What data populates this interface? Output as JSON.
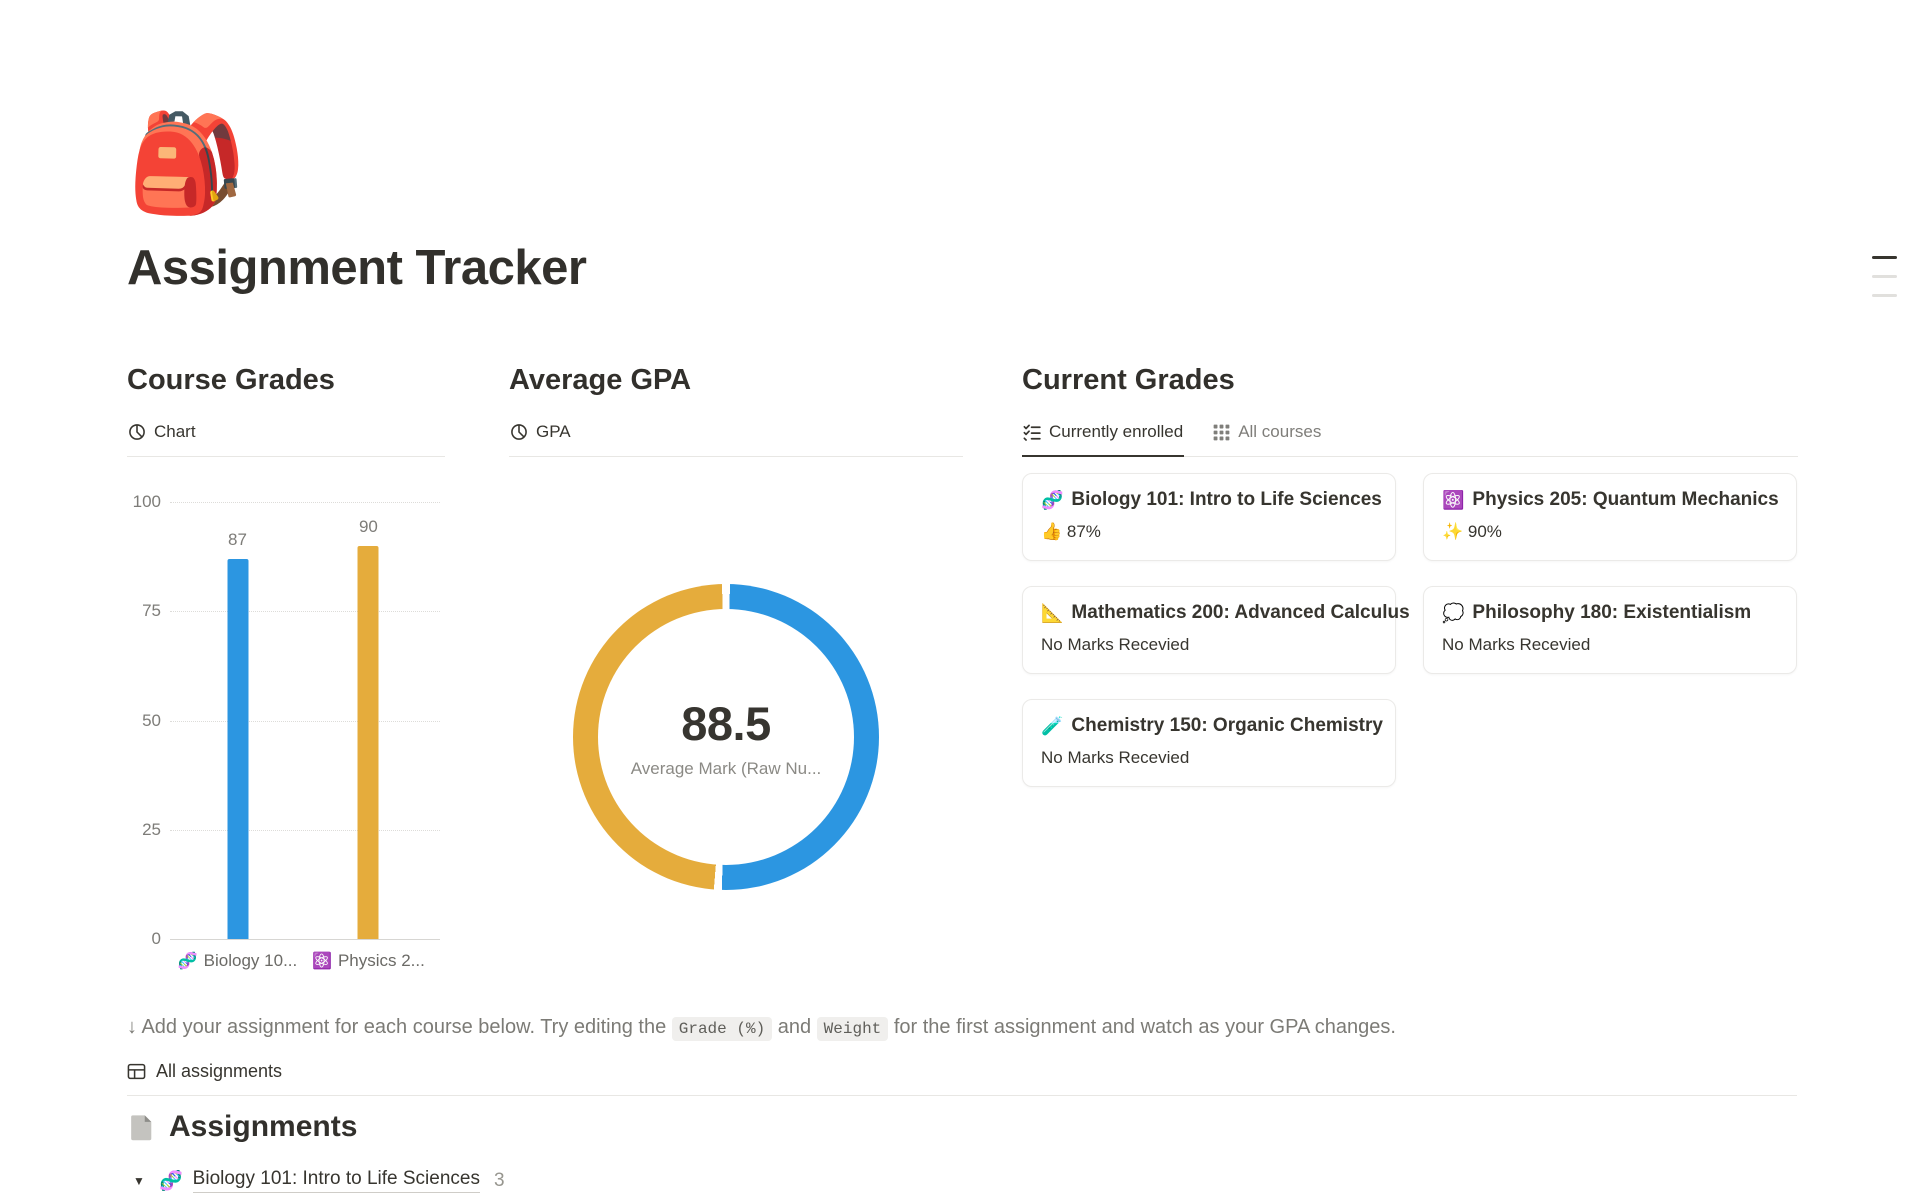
{
  "page": {
    "icon": "🎒",
    "title": "Assignment Tracker"
  },
  "course_grades": {
    "heading": "Course Grades",
    "tab_label": "Chart",
    "chart_data": {
      "type": "bar",
      "ylim": [
        0,
        100
      ],
      "y_ticks": [
        "100",
        "75",
        "50",
        "25",
        "0"
      ],
      "grid": "dotted horizontal",
      "categories": [
        {
          "emoji": "🧬",
          "label": "Biology 10...",
          "value": 87,
          "color": "#2c96e1"
        },
        {
          "emoji": "⚛️",
          "label": "Physics 2...",
          "value": 90,
          "color": "#e5ac3c"
        }
      ]
    }
  },
  "average_gpa": {
    "heading": "Average GPA",
    "tab_label": "GPA",
    "chart_data": {
      "type": "donut",
      "center_value": "88.5",
      "center_label": "Average Mark (Raw Nu...",
      "segments": [
        {
          "name": "Physics 205: Quantum Mechanics",
          "value": 90,
          "color": "#2c96e1"
        },
        {
          "name": "Biology 101: Intro to Life Sciences",
          "value": 87,
          "color": "#e5ac3c"
        }
      ]
    }
  },
  "current_grades": {
    "heading": "Current Grades",
    "tabs": [
      {
        "label": "Currently enrolled",
        "active": true
      },
      {
        "label": "All courses",
        "active": false
      }
    ],
    "cards": [
      {
        "emoji": "🧬",
        "title": "Biology 101: Intro to Life Sciences",
        "mark": "👍 87%"
      },
      {
        "emoji": "⚛️",
        "title": "Physics 205: Quantum Mechanics",
        "mark": "✨ 90%"
      },
      {
        "emoji": "📐",
        "title": "Mathematics 200: Advanced Calculus",
        "mark": "No Marks Recevied"
      },
      {
        "emoji": "💭",
        "title": "Philosophy 180: Existentialism",
        "mark": "No Marks Recevied"
      },
      {
        "emoji": "🧪",
        "title": "Chemistry 150: Organic Chemistry",
        "mark": "No Marks Recevied"
      }
    ]
  },
  "instruction": {
    "part1": "↓ Add your assignment for each course below. Try editing the ",
    "code1": "Grade (%)",
    "part2": " and ",
    "code2": "Weight",
    "part3": " for the first assignment and watch as your GPA changes."
  },
  "assignments": {
    "view_tab": "All assignments",
    "heading": "Assignments",
    "group": {
      "emoji": "🧬",
      "title": "Biology 101: Intro to Life Sciences",
      "count": "3"
    }
  }
}
